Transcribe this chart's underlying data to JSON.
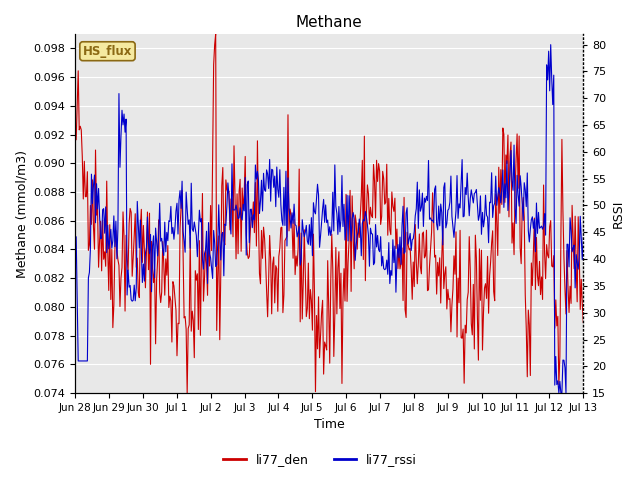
{
  "title": "Methane",
  "xlabel": "Time",
  "ylabel_left": "Methane (mmol/m3)",
  "ylabel_right": "RSSI",
  "ylim_left": [
    0.074,
    0.099
  ],
  "ylim_right": [
    15,
    82
  ],
  "yticks_left": [
    0.074,
    0.076,
    0.078,
    0.08,
    0.082,
    0.084,
    0.086,
    0.088,
    0.09,
    0.092,
    0.094,
    0.096,
    0.098
  ],
  "yticks_right": [
    15,
    20,
    25,
    30,
    35,
    40,
    45,
    50,
    55,
    60,
    65,
    70,
    75,
    80
  ],
  "xtick_labels": [
    "Jun 28",
    "Jun 29",
    "Jun 30",
    "Jul 1",
    "Jul 2",
    "Jul 3",
    "Jul 4",
    "Jul 5",
    "Jul 6",
    "Jul 7",
    "Jul 8",
    "Jul 9",
    "Jul 10",
    "Jul 11",
    "Jul 12",
    "Jul 13"
  ],
  "color_red": "#cc0000",
  "color_blue": "#0000cc",
  "legend_label_red": "li77_den",
  "legend_label_blue": "li77_rssi",
  "annotation_text": "HS_flux",
  "annotation_color": "#8b6914",
  "annotation_bg": "#f5e9a0",
  "background_inner": "#e8e8e8",
  "background_outer": "#ffffff",
  "linewidth": 0.8,
  "title_fontsize": 11,
  "label_fontsize": 9,
  "tick_fontsize": 8,
  "legend_fontsize": 9
}
